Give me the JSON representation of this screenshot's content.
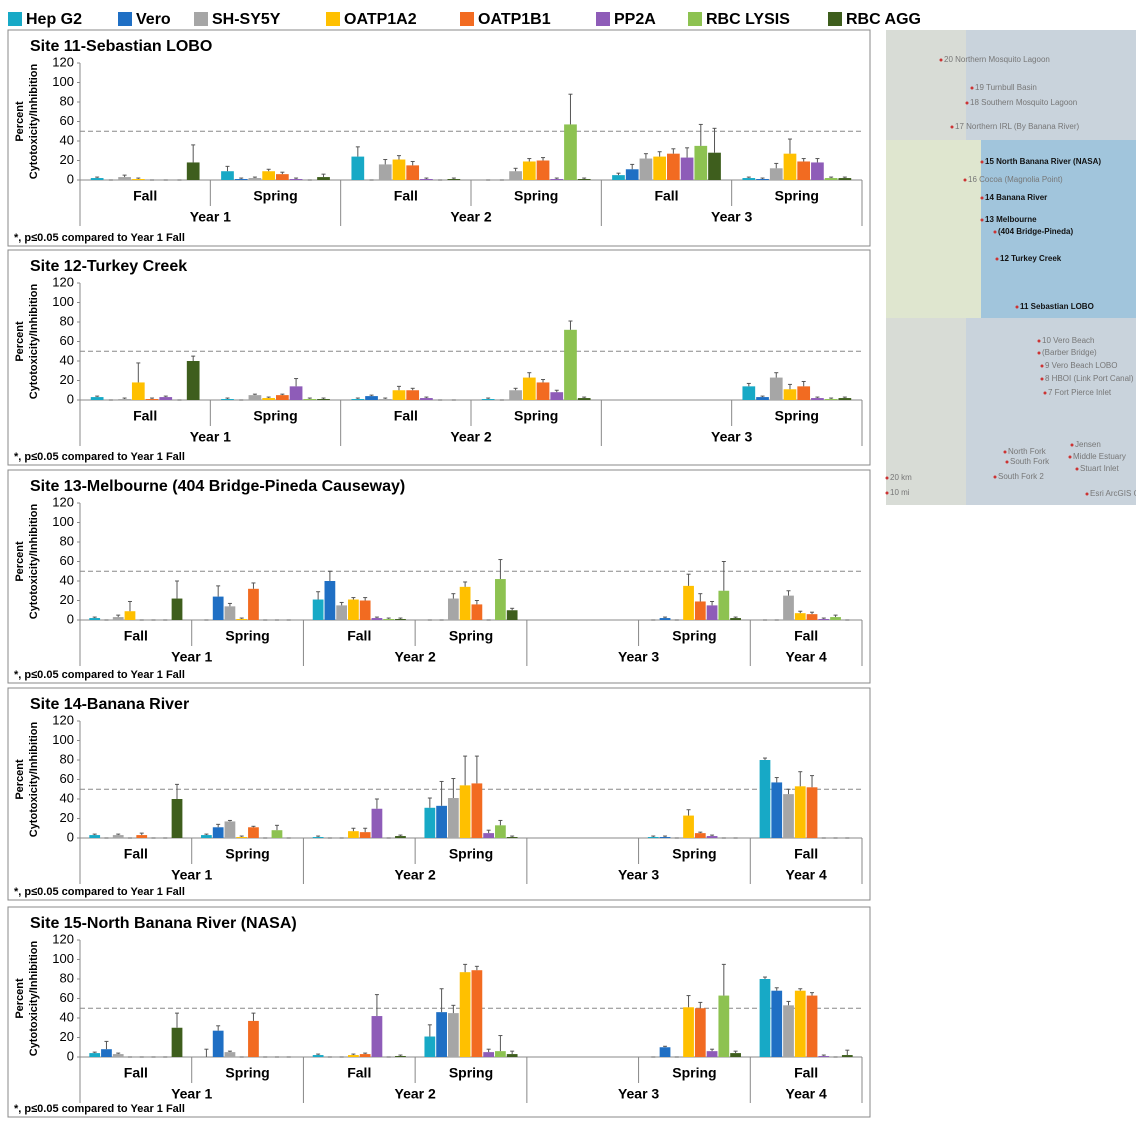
{
  "legend": [
    {
      "name": "Hep G2",
      "color": "#17a9c6"
    },
    {
      "name": "Vero",
      "color": "#1f6fc4"
    },
    {
      "name": "SH-SY5Y",
      "color": "#a6a6a6"
    },
    {
      "name": "OATP1A2",
      "color": "#ffc000"
    },
    {
      "name": "OATP1B1",
      "color": "#f26b21"
    },
    {
      "name": "PP2A",
      "color": "#8e5cb8"
    },
    {
      "name": "RBC LYSIS",
      "color": "#8dc251"
    },
    {
      "name": "RBC AGG",
      "color": "#3e5e1d"
    }
  ],
  "chart_data": [
    {
      "type": "bar",
      "title": "Site 11-Sebastian LOBO",
      "y_label": [
        "Percent",
        "Cytotoxicity/Inhibition"
      ],
      "ylim": [
        0,
        120
      ],
      "yticks": [
        0,
        20,
        40,
        60,
        80,
        100,
        120
      ],
      "threshold": 50,
      "footnote": "*, p≤0.05 compared to Year 1 Fall",
      "groups": [
        {
          "year": "Year 1",
          "seasons": [
            "Fall",
            "Spring"
          ]
        },
        {
          "year": "Year 2",
          "seasons": [
            "Fall",
            "Spring"
          ]
        },
        {
          "year": "Year 3",
          "seasons": [
            "Fall",
            "Spring"
          ]
        }
      ],
      "series": [
        {
          "values": [
            2,
            9,
            24,
            0,
            5,
            2
          ],
          "errors": [
            1,
            5,
            10,
            0,
            2,
            1
          ]
        },
        {
          "values": [
            0,
            1,
            0,
            0,
            11,
            1
          ],
          "errors": [
            0,
            1,
            0,
            0,
            5,
            1
          ]
        },
        {
          "values": [
            3,
            2,
            16,
            9,
            22,
            12
          ],
          "errors": [
            2,
            1,
            5,
            3,
            5,
            5
          ]
        },
        {
          "values": [
            1,
            9,
            21,
            19,
            24,
            27
          ],
          "errors": [
            1,
            2,
            4,
            3,
            5,
            15
          ]
        },
        {
          "values": [
            0,
            6,
            15,
            20,
            27,
            19
          ],
          "errors": [
            0,
            2,
            4,
            3,
            5,
            3
          ]
        },
        {
          "values": [
            0,
            1,
            1,
            1,
            23,
            18
          ],
          "errors": [
            0,
            1,
            1,
            1,
            10,
            4
          ]
        },
        {
          "values": [
            0,
            0,
            0,
            57,
            35,
            2
          ],
          "errors": [
            0,
            0,
            0,
            31,
            22,
            1
          ]
        },
        {
          "values": [
            18,
            3,
            1,
            1,
            28,
            2
          ],
          "errors": [
            18,
            3,
            1,
            1,
            25,
            1
          ]
        }
      ]
    },
    {
      "type": "bar",
      "title": "Site 12-Turkey Creek",
      "y_label": [
        "Percent",
        "Cytotoxicity/Inhibition"
      ],
      "ylim": [
        0,
        120
      ],
      "yticks": [
        0,
        20,
        40,
        60,
        80,
        100,
        120
      ],
      "threshold": 50,
      "footnote": "*, p≤0.05 compared to Year 1 Fall",
      "groups": [
        {
          "year": "Year 1",
          "seasons": [
            "Fall",
            "Spring"
          ]
        },
        {
          "year": "Year 2",
          "seasons": [
            "Fall",
            "Spring"
          ]
        },
        {
          "year": "Year 3",
          "seasons": [
            null,
            "Spring"
          ]
        }
      ],
      "series": [
        {
          "values": [
            3,
            1,
            1,
            1,
            null,
            14
          ],
          "errors": [
            1,
            1,
            1,
            1,
            null,
            3
          ]
        },
        {
          "values": [
            0,
            0,
            4,
            0,
            null,
            3
          ],
          "errors": [
            0,
            0,
            1,
            0,
            null,
            1
          ]
        },
        {
          "values": [
            1,
            5,
            1,
            10,
            null,
            23
          ],
          "errors": [
            1,
            1,
            1,
            2,
            null,
            5
          ]
        },
        {
          "values": [
            18,
            2,
            10,
            23,
            null,
            11
          ],
          "errors": [
            20,
            1,
            4,
            5,
            null,
            5
          ]
        },
        {
          "values": [
            1,
            5,
            10,
            18,
            null,
            14
          ],
          "errors": [
            1,
            1,
            2,
            3,
            null,
            5
          ]
        },
        {
          "values": [
            3,
            14,
            2,
            8,
            null,
            2
          ],
          "errors": [
            1,
            8,
            1,
            2,
            null,
            1
          ]
        },
        {
          "values": [
            0,
            1,
            0,
            72,
            null,
            1
          ],
          "errors": [
            0,
            1,
            0,
            9,
            null,
            1
          ]
        },
        {
          "values": [
            40,
            1,
            0,
            2,
            null,
            2
          ],
          "errors": [
            5,
            1,
            0,
            1,
            null,
            1
          ]
        }
      ]
    },
    {
      "type": "bar",
      "title": "Site 13-Melbourne (404 Bridge-Pineda Causeway)",
      "y_label": [
        "Percent",
        "Cytotoxicity/Inhibition"
      ],
      "ylim": [
        0,
        120
      ],
      "yticks": [
        0,
        20,
        40,
        60,
        80,
        100,
        120
      ],
      "threshold": 50,
      "footnote": "*, p≤0.05 compared to Year 1 Fall",
      "groups": [
        {
          "year": "Year 1",
          "seasons": [
            "Fall",
            "Spring"
          ]
        },
        {
          "year": "Year 2",
          "seasons": [
            "Fall",
            "Spring"
          ]
        },
        {
          "year": "Year 3",
          "seasons": [
            null,
            "Spring"
          ]
        },
        {
          "year": "Year 4",
          "seasons": [
            "Fall"
          ]
        }
      ],
      "series": [
        {
          "values": [
            2,
            0,
            21,
            0,
            null,
            0,
            0
          ],
          "errors": [
            1,
            0,
            8,
            0,
            null,
            0,
            0
          ]
        },
        {
          "values": [
            0,
            24,
            40,
            0,
            null,
            2,
            0
          ],
          "errors": [
            0,
            11,
            10,
            0,
            null,
            1,
            0
          ]
        },
        {
          "values": [
            3,
            14,
            15,
            22,
            null,
            0,
            25
          ],
          "errors": [
            2,
            3,
            3,
            5,
            null,
            0,
            5
          ]
        },
        {
          "values": [
            9,
            1,
            21,
            34,
            null,
            35,
            7
          ],
          "errors": [
            10,
            1,
            2,
            5,
            null,
            12,
            2
          ]
        },
        {
          "values": [
            0,
            32,
            20,
            16,
            null,
            19,
            6
          ],
          "errors": [
            0,
            6,
            3,
            4,
            null,
            8,
            2
          ]
        },
        {
          "values": [
            0,
            0,
            2,
            0,
            null,
            15,
            1
          ],
          "errors": [
            0,
            0,
            1,
            0,
            null,
            4,
            1
          ]
        },
        {
          "values": [
            0,
            0,
            1,
            42,
            null,
            30,
            3
          ],
          "errors": [
            0,
            0,
            1,
            20,
            null,
            30,
            2
          ]
        },
        {
          "values": [
            22,
            0,
            1,
            10,
            null,
            2,
            0
          ],
          "errors": [
            18,
            0,
            1,
            2,
            null,
            1,
            0
          ]
        }
      ]
    },
    {
      "type": "bar",
      "title": "Site 14-Banana River",
      "y_label": [
        "Percent",
        "Cytotoxicity/Inhibition"
      ],
      "ylim": [
        0,
        120
      ],
      "yticks": [
        0,
        20,
        40,
        60,
        80,
        100,
        120
      ],
      "threshold": 50,
      "footnote": "*, p≤0.05 compared to Year 1 Fall",
      "groups": [
        {
          "year": "Year 1",
          "seasons": [
            "Fall",
            "Spring"
          ]
        },
        {
          "year": "Year 2",
          "seasons": [
            null,
            "Spring"
          ]
        },
        {
          "year": "Year 3",
          "seasons": [
            null,
            "Spring"
          ]
        },
        {
          "year": "Year 4",
          "seasons": [
            "Fall"
          ]
        }
      ],
      "series": [
        {
          "values": [
            3,
            3,
            1,
            31,
            null,
            1,
            80
          ],
          "errors": [
            1,
            1,
            1,
            10,
            null,
            1,
            2
          ]
        },
        {
          "values": [
            0,
            11,
            0,
            33,
            null,
            1,
            57
          ],
          "errors": [
            0,
            3,
            0,
            25,
            null,
            1,
            5
          ]
        },
        {
          "values": [
            3,
            17,
            0,
            41,
            null,
            0,
            45
          ],
          "errors": [
            1,
            1,
            0,
            20,
            null,
            0,
            5
          ]
        },
        {
          "values": [
            0,
            1,
            7,
            54,
            null,
            23,
            53
          ],
          "errors": [
            0,
            1,
            3,
            30,
            null,
            6,
            15
          ]
        },
        {
          "values": [
            3,
            11,
            6,
            56,
            null,
            5,
            52
          ],
          "errors": [
            2,
            1,
            4,
            28,
            null,
            1,
            12
          ]
        },
        {
          "values": [
            0,
            0,
            30,
            5,
            null,
            2,
            0
          ],
          "errors": [
            0,
            0,
            10,
            3,
            null,
            1,
            0
          ]
        },
        {
          "values": [
            0,
            8,
            0,
            13,
            null,
            0,
            0
          ],
          "errors": [
            0,
            5,
            0,
            5,
            null,
            0,
            0
          ]
        },
        {
          "values": [
            40,
            0,
            2,
            1,
            null,
            0,
            0
          ],
          "errors": [
            15,
            0,
            1,
            1,
            null,
            0,
            0
          ]
        }
      ]
    },
    {
      "type": "bar",
      "title": "Site 15-North Banana River (NASA)",
      "y_label": [
        "Percent",
        "Cytotoxicity/Inhibition"
      ],
      "ylim": [
        0,
        120
      ],
      "yticks": [
        0,
        20,
        40,
        60,
        80,
        100,
        120
      ],
      "threshold": 50,
      "footnote": "*, p≤0.05 compared to Year 1 Fall",
      "groups": [
        {
          "year": "Year 1",
          "seasons": [
            "Fall",
            "Spring"
          ]
        },
        {
          "year": "Year 2",
          "seasons": [
            "Fall",
            "Spring"
          ]
        },
        {
          "year": "Year 3",
          "seasons": [
            null,
            "Spring"
          ]
        },
        {
          "year": "Year 4",
          "seasons": [
            "Fall"
          ]
        }
      ],
      "series": [
        {
          "values": [
            4,
            0,
            2,
            21,
            null,
            0,
            80
          ],
          "errors": [
            1,
            8,
            1,
            12,
            null,
            0,
            2
          ]
        },
        {
          "values": [
            8,
            27,
            0,
            46,
            null,
            10,
            68
          ],
          "errors": [
            8,
            5,
            0,
            24,
            null,
            1,
            3
          ]
        },
        {
          "values": [
            3,
            5,
            0,
            45,
            null,
            0,
            53
          ],
          "errors": [
            1,
            1,
            0,
            8,
            null,
            0,
            4
          ]
        },
        {
          "values": [
            0,
            0,
            2,
            87,
            null,
            51,
            68
          ],
          "errors": [
            0,
            0,
            1,
            8,
            null,
            12,
            2
          ]
        },
        {
          "values": [
            0,
            37,
            3,
            89,
            null,
            50,
            63
          ],
          "errors": [
            0,
            8,
            1,
            4,
            null,
            6,
            3
          ]
        },
        {
          "values": [
            0,
            0,
            42,
            5,
            null,
            6,
            1
          ],
          "errors": [
            0,
            0,
            22,
            3,
            null,
            2,
            1
          ]
        },
        {
          "values": [
            0,
            0,
            0,
            6,
            null,
            63,
            0
          ],
          "errors": [
            0,
            0,
            0,
            16,
            null,
            32,
            0
          ]
        },
        {
          "values": [
            30,
            0,
            1,
            3,
            null,
            4,
            2
          ],
          "errors": [
            15,
            0,
            1,
            3,
            null,
            2,
            5
          ]
        }
      ]
    }
  ],
  "map": {
    "labels": [
      "20 Northern Mosquito Lagoon",
      "19 Turnbull Basin",
      "18 Southern Mosquito Lagoon",
      "17 Northern IRL (By Banana River)",
      "15 North Banana River (NASA)",
      "16 Cocoa (Magnolia Point)",
      "14 Banana River",
      "13 Melbourne",
      "(404 Bridge-Pineda)",
      "12 Turkey Creek",
      "11 Sebastian LOBO",
      "10 Vero Beach",
      "(Barber Bridge)",
      "9 Vero Beach LOBO",
      "8 HBOI (Link Port Canal)",
      "7 Fort Pierce Inlet",
      "Jensen",
      "North Fork",
      "Middle Estuary",
      "South Fork",
      "Stuart Inlet",
      "South Fork 2",
      "20 km",
      "10 mi",
      "Esri ArcGIS Online"
    ]
  }
}
